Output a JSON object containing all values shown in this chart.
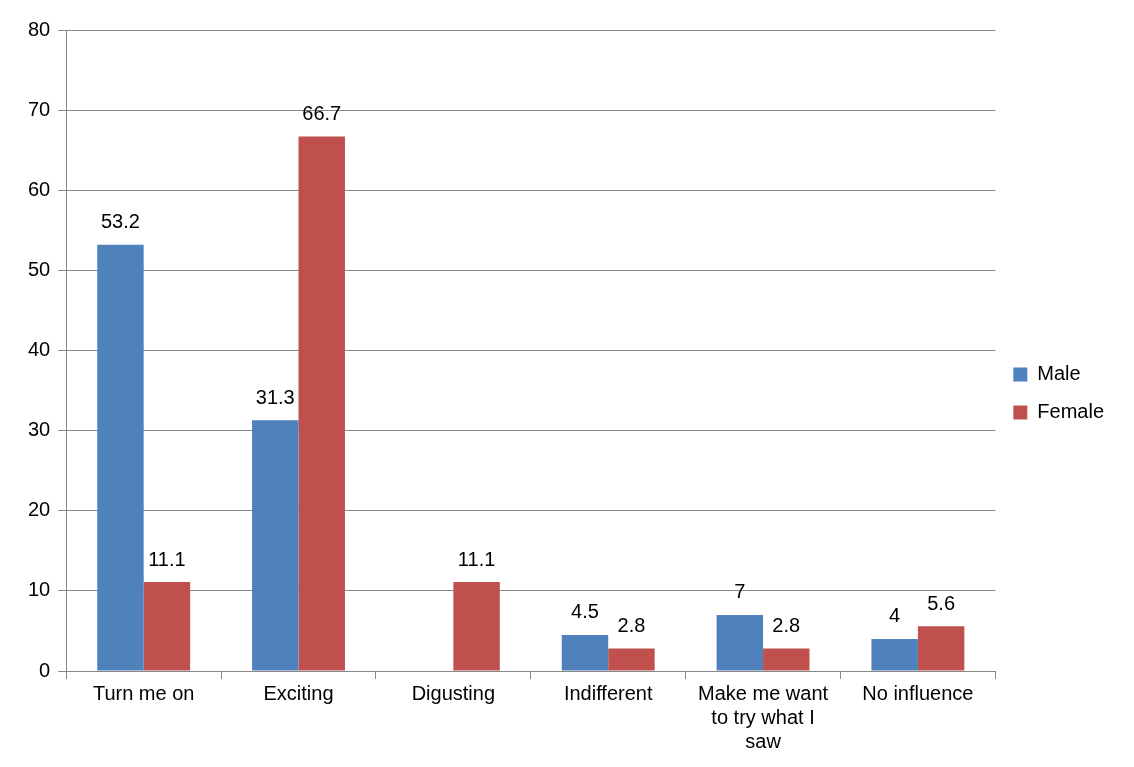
{
  "chart_data": {
    "type": "bar",
    "categories": [
      "Turn me on",
      "Exciting",
      "Digusting",
      "Indifferent",
      "Make me want to try what I saw",
      "No influence"
    ],
    "series": [
      {
        "name": "Male",
        "color": "#4f81bd",
        "values": [
          53.2,
          31.3,
          null,
          4.5,
          7,
          4
        ]
      },
      {
        "name": "Female",
        "color": "#c0504d",
        "values": [
          11.1,
          66.7,
          11.1,
          2.8,
          2.8,
          5.6
        ]
      }
    ],
    "ylim": [
      0,
      80
    ],
    "yticks": [
      0,
      10,
      20,
      30,
      40,
      50,
      60,
      70,
      80
    ],
    "grid": "y",
    "legend": "right",
    "data_labels": true
  }
}
